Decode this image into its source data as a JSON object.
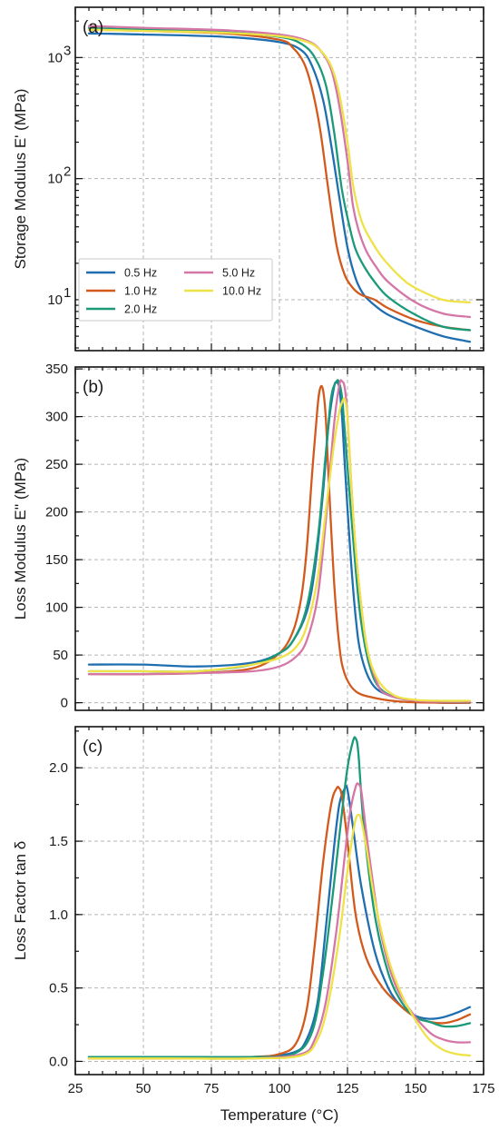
{
  "chart_data": [
    {
      "type": "line",
      "panel_label": "(a)",
      "ylabel": "Storage Modulus E' (MPa)",
      "yscale": "log",
      "xlim": [
        25,
        175
      ],
      "ylim": [
        3.8,
        2600
      ],
      "yticks": [
        10,
        100,
        1000
      ],
      "ytick_labels": [
        "10",
        "10",
        "10"
      ],
      "ytick_exponents": [
        "1",
        "2",
        "3"
      ],
      "grid": true,
      "legend": {
        "position": "lower-left",
        "entries": [
          "0.5 Hz",
          "1.0 Hz",
          "2.0 Hz",
          "5.0 Hz",
          "10.0 Hz"
        ]
      },
      "series": [
        {
          "name": "0.5 Hz",
          "color": "#1f6fb0",
          "x": [
            30,
            50,
            80,
            100,
            108,
            112,
            116,
            119,
            122,
            125,
            128,
            131,
            135,
            140,
            150,
            160,
            170
          ],
          "y": [
            1580,
            1550,
            1480,
            1340,
            1150,
            850,
            450,
            190,
            70,
            27,
            15,
            11,
            9,
            7.5,
            6,
            5,
            4.5
          ]
        },
        {
          "name": "1.0 Hz",
          "color": "#d15a1c",
          "x": [
            30,
            50,
            80,
            100,
            105,
            109,
            112,
            115,
            118,
            121,
            124,
            127,
            130,
            135,
            140,
            150,
            160,
            170
          ],
          "y": [
            1700,
            1660,
            1580,
            1400,
            1200,
            900,
            550,
            250,
            80,
            28,
            16,
            12.5,
            11,
            10,
            8.5,
            6.8,
            6,
            5.6
          ]
        },
        {
          "name": "2.0 Hz",
          "color": "#1a9a78",
          "x": [
            30,
            50,
            80,
            100,
            108,
            113,
            117,
            120,
            123,
            126,
            128,
            131,
            135,
            140,
            150,
            160,
            170
          ],
          "y": [
            1750,
            1700,
            1620,
            1480,
            1300,
            1000,
            600,
            250,
            80,
            38,
            26,
            19,
            14,
            10.5,
            7.5,
            6,
            5.6
          ]
        },
        {
          "name": "5.0 Hz",
          "color": "#d477a6",
          "x": [
            30,
            50,
            80,
            100,
            110,
            115,
            119,
            122,
            125,
            127,
            129,
            132,
            136,
            140,
            150,
            160,
            170
          ],
          "y": [
            1820,
            1760,
            1680,
            1550,
            1380,
            1150,
            800,
            400,
            140,
            60,
            38,
            25,
            18,
            14,
            9.5,
            7.7,
            7.2
          ]
        },
        {
          "name": "10.0 Hz",
          "color": "#eee247",
          "x": [
            30,
            50,
            80,
            100,
            110,
            115,
            119,
            122,
            125,
            127,
            129,
            131,
            134,
            138,
            145,
            150,
            160,
            170
          ],
          "y": [
            1700,
            1660,
            1600,
            1500,
            1350,
            1150,
            850,
            500,
            200,
            90,
            55,
            40,
            30,
            22,
            15,
            12.5,
            10,
            9.5
          ]
        }
      ]
    },
    {
      "type": "line",
      "panel_label": "(b)",
      "ylabel": "Loss Modulus E'' (MPa)",
      "yscale": "linear",
      "xlim": [
        25,
        175
      ],
      "ylim": [
        -8,
        352
      ],
      "yticks": [
        0,
        50,
        100,
        150,
        200,
        250,
        300,
        350
      ],
      "ytick_labels": [
        "0",
        "50",
        "100",
        "150",
        "200",
        "250",
        "300",
        "350"
      ],
      "grid": true,
      "series": [
        {
          "name": "0.5 Hz",
          "color": "#1f6fb0",
          "x": [
            30,
            50,
            70,
            90,
            100,
            105,
            110,
            113,
            116,
            118,
            120,
            121,
            122,
            123,
            124,
            126,
            128,
            130,
            134,
            140,
            150,
            160,
            170
          ],
          "y": [
            40,
            40,
            38,
            42,
            52,
            65,
            95,
            140,
            220,
            290,
            330,
            336,
            330,
            300,
            250,
            160,
            90,
            50,
            20,
            8,
            2,
            0,
            0
          ]
        },
        {
          "name": "1.0 Hz",
          "color": "#d15a1c",
          "x": [
            30,
            50,
            70,
            90,
            100,
            105,
            108,
            110,
            112,
            114,
            115,
            116,
            117,
            118,
            120,
            122,
            124,
            128,
            135,
            145,
            160,
            170
          ],
          "y": [
            30,
            30,
            31,
            36,
            52,
            75,
            110,
            160,
            240,
            310,
            330,
            328,
            300,
            240,
            130,
            60,
            30,
            12,
            5,
            1,
            0,
            0
          ]
        },
        {
          "name": "2.0 Hz",
          "color": "#1a9a78",
          "x": [
            30,
            50,
            70,
            90,
            100,
            105,
            110,
            114,
            117,
            119,
            121,
            122,
            123,
            124,
            126,
            128,
            130,
            133,
            137,
            145,
            160,
            170
          ],
          "y": [
            33,
            33,
            33,
            40,
            52,
            65,
            100,
            170,
            260,
            320,
            337,
            335,
            320,
            285,
            210,
            140,
            85,
            40,
            15,
            4,
            1,
            1
          ]
        },
        {
          "name": "5.0 Hz",
          "color": "#d477a6",
          "x": [
            30,
            50,
            70,
            90,
            100,
            106,
            110,
            114,
            117,
            120,
            122,
            123,
            124,
            125,
            127,
            129,
            132,
            136,
            140,
            150,
            160,
            170
          ],
          "y": [
            30,
            30,
            31,
            33,
            38,
            48,
            65,
            110,
            190,
            290,
            333,
            337,
            330,
            300,
            200,
            130,
            60,
            20,
            8,
            2,
            1,
            1
          ]
        },
        {
          "name": "10.0 Hz",
          "color": "#eee247",
          "x": [
            30,
            50,
            70,
            90,
            100,
            106,
            110,
            114,
            117,
            120,
            122,
            123,
            124,
            125,
            126,
            127,
            129,
            132,
            136,
            142,
            150,
            160,
            170
          ],
          "y": [
            33,
            33,
            33,
            40,
            47,
            58,
            80,
            130,
            200,
            270,
            305,
            315,
            318,
            300,
            250,
            200,
            130,
            60,
            25,
            8,
            3,
            2,
            2
          ]
        }
      ]
    },
    {
      "type": "line",
      "panel_label": "(c)",
      "ylabel": "Loss Factor tan δ",
      "xlabel": "Temperature (°C)",
      "yscale": "linear",
      "xlim": [
        25,
        175
      ],
      "ylim": [
        -0.09,
        2.28
      ],
      "xticks": [
        25,
        50,
        75,
        100,
        125,
        150,
        175
      ],
      "xtick_labels": [
        "25",
        "50",
        "75",
        "100",
        "125",
        "150",
        "175"
      ],
      "yticks": [
        0.0,
        0.5,
        1.0,
        1.5,
        2.0
      ],
      "ytick_labels": [
        "0.0",
        "0.5",
        "1.0",
        "1.5",
        "2.0"
      ],
      "grid": true,
      "series": [
        {
          "name": "0.5 Hz",
          "color": "#1f6fb0",
          "x": [
            30,
            60,
            90,
            105,
            110,
            114,
            117,
            120,
            122,
            124,
            125,
            127,
            130,
            135,
            140,
            145,
            150,
            155,
            160,
            165,
            170
          ],
          "y": [
            0.03,
            0.03,
            0.03,
            0.06,
            0.15,
            0.4,
            0.9,
            1.45,
            1.75,
            1.86,
            1.85,
            1.6,
            1.2,
            0.75,
            0.5,
            0.37,
            0.31,
            0.29,
            0.3,
            0.33,
            0.37
          ]
        },
        {
          "name": "1.0 Hz",
          "color": "#d15a1c",
          "x": [
            30,
            60,
            90,
            100,
            106,
            110,
            113,
            116,
            119,
            121,
            122,
            123,
            125,
            128,
            132,
            138,
            145,
            150,
            155,
            160,
            165,
            170
          ],
          "y": [
            0.02,
            0.02,
            0.03,
            0.05,
            0.12,
            0.35,
            0.8,
            1.35,
            1.75,
            1.86,
            1.86,
            1.8,
            1.5,
            1.0,
            0.7,
            0.5,
            0.37,
            0.3,
            0.27,
            0.26,
            0.28,
            0.32
          ]
        },
        {
          "name": "2.0 Hz",
          "color": "#1a9a78",
          "x": [
            30,
            60,
            90,
            105,
            112,
            116,
            120,
            123,
            125,
            127,
            128,
            129,
            131,
            135,
            140,
            145,
            150,
            155,
            160,
            165,
            170
          ],
          "y": [
            0.03,
            0.03,
            0.03,
            0.05,
            0.2,
            0.6,
            1.2,
            1.7,
            2.0,
            2.18,
            2.2,
            2.1,
            1.6,
            1.0,
            0.6,
            0.4,
            0.3,
            0.27,
            0.24,
            0.24,
            0.26
          ]
        },
        {
          "name": "5.0 Hz",
          "color": "#d477a6",
          "x": [
            30,
            60,
            90,
            108,
            113,
            117,
            121,
            124,
            126,
            128,
            129,
            130,
            131,
            133,
            137,
            142,
            148,
            155,
            160,
            165,
            170
          ],
          "y": [
            0.02,
            0.02,
            0.02,
            0.05,
            0.15,
            0.4,
            0.9,
            1.4,
            1.7,
            1.87,
            1.89,
            1.85,
            1.7,
            1.4,
            0.9,
            0.55,
            0.35,
            0.2,
            0.15,
            0.13,
            0.13
          ]
        },
        {
          "name": "10.0 Hz",
          "color": "#eee247",
          "x": [
            30,
            60,
            90,
            108,
            114,
            118,
            122,
            125,
            127,
            128,
            129,
            130,
            132,
            135,
            140,
            145,
            150,
            155,
            160,
            165,
            170
          ],
          "y": [
            0.02,
            0.02,
            0.02,
            0.04,
            0.15,
            0.4,
            0.85,
            1.3,
            1.55,
            1.65,
            1.68,
            1.65,
            1.45,
            1.1,
            0.7,
            0.45,
            0.28,
            0.15,
            0.08,
            0.05,
            0.04
          ]
        }
      ]
    }
  ]
}
